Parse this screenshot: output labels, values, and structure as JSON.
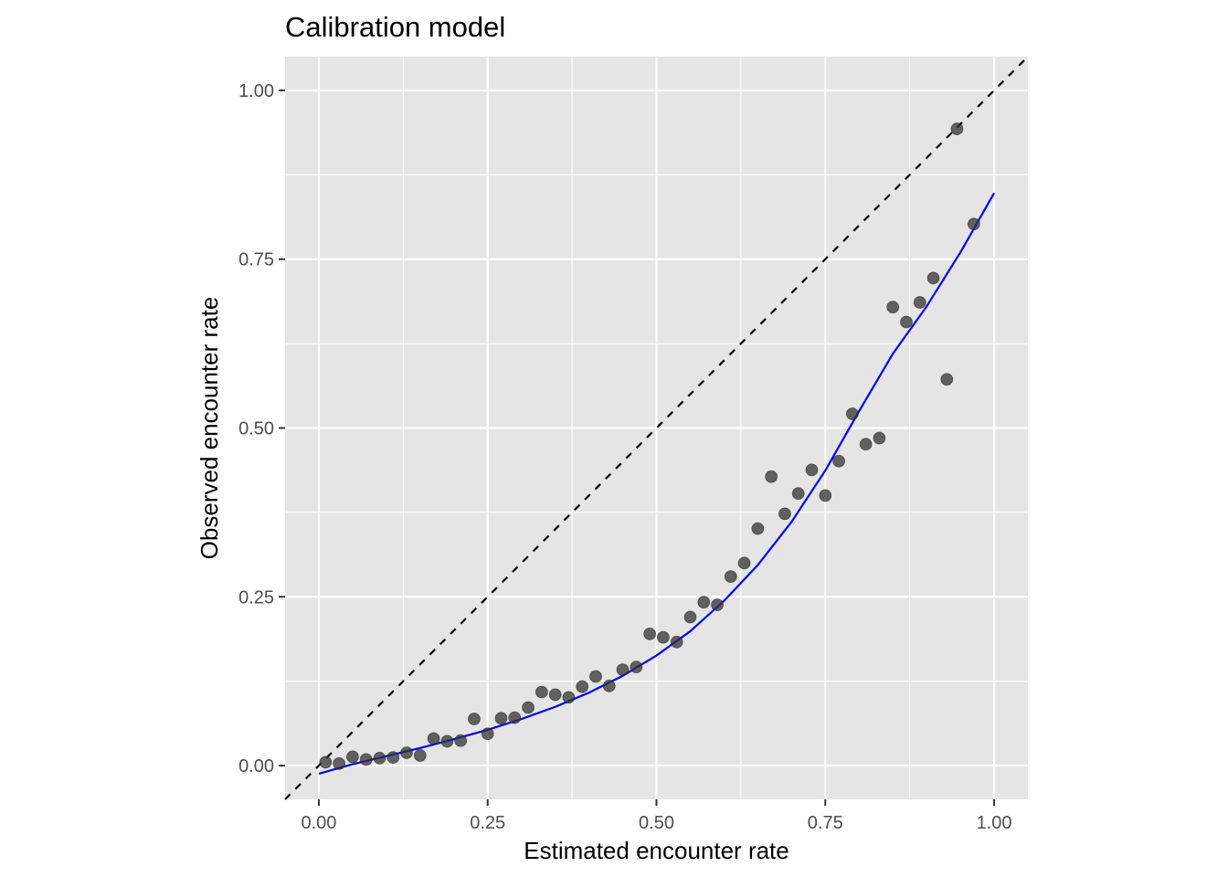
{
  "chart_data": {
    "type": "scatter",
    "title": "Calibration model",
    "xlabel": "Estimated encounter rate",
    "ylabel": "Observed encounter rate",
    "xlim": [
      -0.05,
      1.05
    ],
    "ylim": [
      -0.05,
      1.05
    ],
    "x_ticks": [
      0.0,
      0.25,
      0.5,
      0.75,
      1.0
    ],
    "x_tick_labels": [
      "0.00",
      "0.25",
      "0.50",
      "0.75",
      "1.00"
    ],
    "y_ticks": [
      0.0,
      0.25,
      0.5,
      0.75,
      1.0
    ],
    "y_tick_labels": [
      "0.00",
      "0.25",
      "0.50",
      "0.75",
      "1.00"
    ],
    "grid": true,
    "panel_background": "#e5e5e5",
    "grid_color": "#ffffff",
    "point_color": "#333333",
    "curve_color": "#0000ff",
    "reference_line_color": "#000000",
    "reference_line": {
      "style": "dashed",
      "slope": 1,
      "intercept": 0
    },
    "points": [
      {
        "x": 0.01,
        "y": 0.005
      },
      {
        "x": 0.03,
        "y": 0.003
      },
      {
        "x": 0.05,
        "y": 0.013
      },
      {
        "x": 0.07,
        "y": 0.009
      },
      {
        "x": 0.09,
        "y": 0.011
      },
      {
        "x": 0.11,
        "y": 0.012
      },
      {
        "x": 0.13,
        "y": 0.019
      },
      {
        "x": 0.15,
        "y": 0.015
      },
      {
        "x": 0.17,
        "y": 0.04
      },
      {
        "x": 0.19,
        "y": 0.036
      },
      {
        "x": 0.21,
        "y": 0.037
      },
      {
        "x": 0.23,
        "y": 0.069
      },
      {
        "x": 0.25,
        "y": 0.047
      },
      {
        "x": 0.27,
        "y": 0.07
      },
      {
        "x": 0.29,
        "y": 0.071
      },
      {
        "x": 0.31,
        "y": 0.086
      },
      {
        "x": 0.33,
        "y": 0.109
      },
      {
        "x": 0.35,
        "y": 0.105
      },
      {
        "x": 0.37,
        "y": 0.101
      },
      {
        "x": 0.39,
        "y": 0.117
      },
      {
        "x": 0.41,
        "y": 0.132
      },
      {
        "x": 0.43,
        "y": 0.118
      },
      {
        "x": 0.45,
        "y": 0.142
      },
      {
        "x": 0.47,
        "y": 0.146
      },
      {
        "x": 0.49,
        "y": 0.195
      },
      {
        "x": 0.51,
        "y": 0.19
      },
      {
        "x": 0.53,
        "y": 0.183
      },
      {
        "x": 0.55,
        "y": 0.22
      },
      {
        "x": 0.57,
        "y": 0.242
      },
      {
        "x": 0.59,
        "y": 0.238
      },
      {
        "x": 0.61,
        "y": 0.28
      },
      {
        "x": 0.63,
        "y": 0.3
      },
      {
        "x": 0.65,
        "y": 0.351
      },
      {
        "x": 0.67,
        "y": 0.428
      },
      {
        "x": 0.69,
        "y": 0.373
      },
      {
        "x": 0.71,
        "y": 0.403
      },
      {
        "x": 0.73,
        "y": 0.438
      },
      {
        "x": 0.75,
        "y": 0.4
      },
      {
        "x": 0.77,
        "y": 0.451
      },
      {
        "x": 0.79,
        "y": 0.521
      },
      {
        "x": 0.81,
        "y": 0.476
      },
      {
        "x": 0.83,
        "y": 0.485
      },
      {
        "x": 0.85,
        "y": 0.679
      },
      {
        "x": 0.87,
        "y": 0.657
      },
      {
        "x": 0.89,
        "y": 0.686
      },
      {
        "x": 0.91,
        "y": 0.722
      },
      {
        "x": 0.93,
        "y": 0.572
      },
      {
        "x": 0.945,
        "y": 0.943
      },
      {
        "x": 0.97,
        "y": 0.802
      }
    ],
    "fit_curve": {
      "x": [
        0.0,
        0.05,
        0.1,
        0.15,
        0.2,
        0.25,
        0.3,
        0.35,
        0.4,
        0.45,
        0.5,
        0.55,
        0.6,
        0.65,
        0.7,
        0.75,
        0.8,
        0.85,
        0.9,
        0.95,
        1.0
      ],
      "y": [
        -0.012,
        0.002,
        0.014,
        0.026,
        0.039,
        0.053,
        0.069,
        0.087,
        0.108,
        0.133,
        0.163,
        0.199,
        0.244,
        0.297,
        0.361,
        0.437,
        0.525,
        0.61,
        0.68,
        0.76,
        0.848
      ]
    }
  }
}
